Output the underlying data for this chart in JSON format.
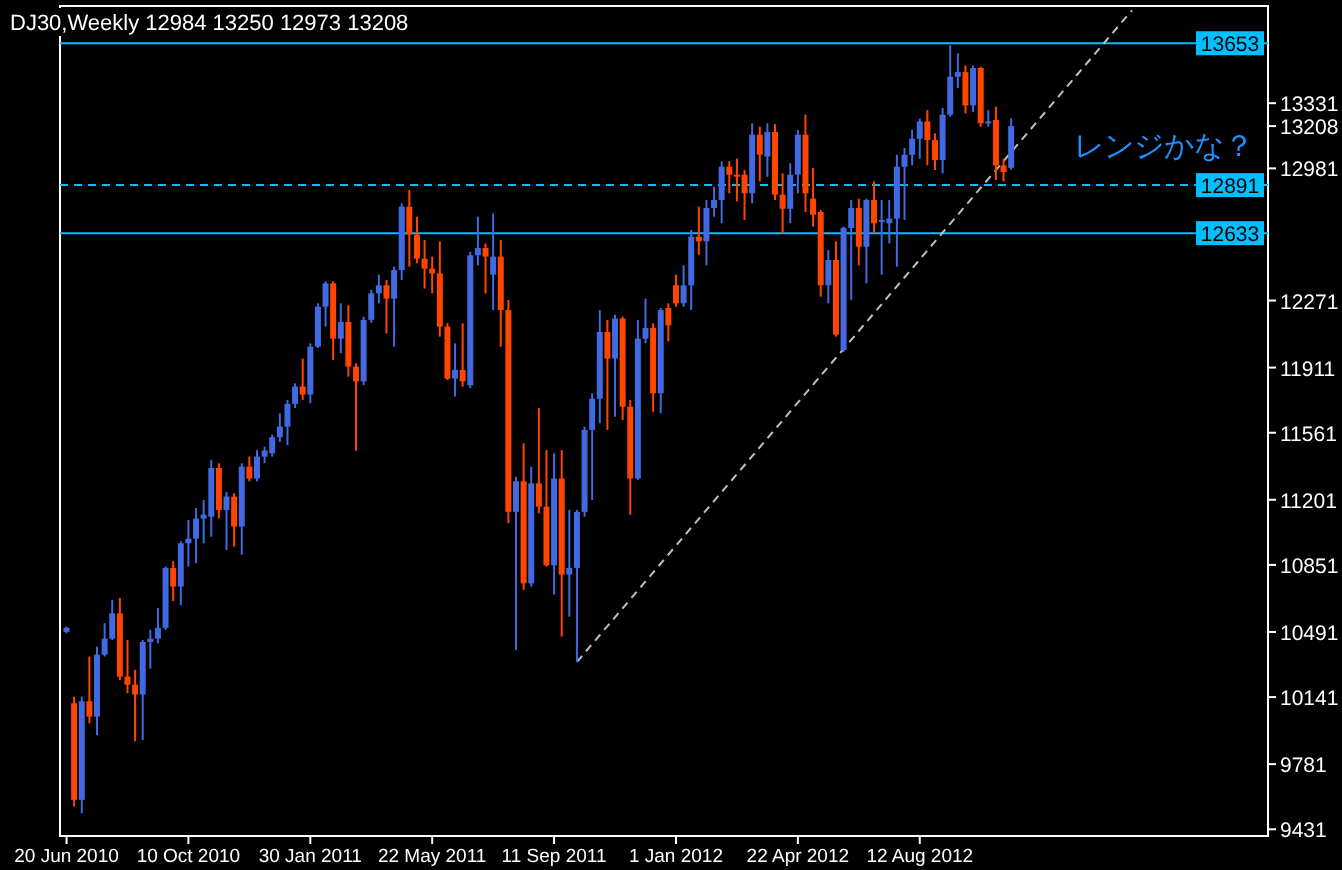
{
  "chart_data": {
    "type": "candlestick",
    "title": "DJ30,Weekly  12984 13250 12973 13208",
    "x": [
      "2010-06-20",
      "2010-06-27",
      "2010-07-04",
      "2010-07-11",
      "2010-07-18",
      "2010-07-25",
      "2010-08-01",
      "2010-08-08",
      "2010-08-15",
      "2010-08-22",
      "2010-08-29",
      "2010-09-05",
      "2010-09-12",
      "2010-09-19",
      "2010-09-26",
      "2010-10-03",
      "2010-10-10",
      "2010-10-17",
      "2010-10-24",
      "2010-10-31",
      "2010-11-07",
      "2010-11-14",
      "2010-11-21",
      "2010-11-28",
      "2010-12-05",
      "2010-12-12",
      "2010-12-19",
      "2010-12-26",
      "2011-01-02",
      "2011-01-09",
      "2011-01-16",
      "2011-01-23",
      "2011-01-30",
      "2011-02-06",
      "2011-02-13",
      "2011-02-20",
      "2011-02-27",
      "2011-03-06",
      "2011-03-13",
      "2011-03-20",
      "2011-03-27",
      "2011-04-03",
      "2011-04-10",
      "2011-04-17",
      "2011-04-24",
      "2011-05-01",
      "2011-05-08",
      "2011-05-15",
      "2011-05-22",
      "2011-05-29",
      "2011-06-05",
      "2011-06-12",
      "2011-06-19",
      "2011-06-26",
      "2011-07-03",
      "2011-07-10",
      "2011-07-17",
      "2011-07-24",
      "2011-07-31",
      "2011-08-07",
      "2011-08-14",
      "2011-08-21",
      "2011-08-28",
      "2011-09-04",
      "2011-09-11",
      "2011-09-18",
      "2011-09-25",
      "2011-10-02",
      "2011-10-09",
      "2011-10-16",
      "2011-10-23",
      "2011-10-30",
      "2011-11-06",
      "2011-11-13",
      "2011-11-20",
      "2011-11-27",
      "2011-12-04",
      "2011-12-11",
      "2011-12-18",
      "2011-12-25",
      "2012-01-01",
      "2012-01-08",
      "2012-01-15",
      "2012-01-22",
      "2012-01-29",
      "2012-02-05",
      "2012-02-12",
      "2012-02-19",
      "2012-02-26",
      "2012-03-04",
      "2012-03-11",
      "2012-03-18",
      "2012-03-25",
      "2012-04-01",
      "2012-04-08",
      "2012-04-15",
      "2012-04-22",
      "2012-04-29",
      "2012-05-06",
      "2012-05-13",
      "2012-05-20",
      "2012-05-27",
      "2012-06-03",
      "2012-06-10",
      "2012-06-17",
      "2012-06-24",
      "2012-07-01",
      "2012-07-08",
      "2012-07-15",
      "2012-07-22",
      "2012-07-29",
      "2012-08-05",
      "2012-08-12",
      "2012-08-19",
      "2012-08-26",
      "2012-09-02",
      "2012-09-09",
      "2012-09-16",
      "2012-09-23",
      "2012-09-30",
      "2012-10-07",
      "2012-10-14",
      "2012-10-21",
      "2012-10-28",
      "2012-11-04"
    ],
    "ohlc": [
      [
        10491,
        10520,
        10484,
        10513
      ],
      [
        10108,
        10144,
        9553,
        9589
      ],
      [
        9589,
        10144,
        9517,
        10119
      ],
      [
        10119,
        10359,
        10001,
        10036
      ],
      [
        10036,
        10412,
        9936,
        10369
      ],
      [
        10369,
        10538,
        10359,
        10455
      ],
      [
        10455,
        10663,
        10448,
        10591
      ],
      [
        10591,
        10674,
        10233,
        10251
      ],
      [
        10251,
        10448,
        10162,
        10208
      ],
      [
        10208,
        10287,
        9904,
        10155
      ],
      [
        10155,
        10448,
        9911,
        10437
      ],
      [
        10437,
        10502,
        10294,
        10455
      ],
      [
        10455,
        10620,
        10430,
        10513
      ],
      [
        10513,
        10842,
        10502,
        10835
      ],
      [
        10835,
        10871,
        10656,
        10735
      ],
      [
        10735,
        10978,
        10634,
        10967
      ],
      [
        10967,
        11093,
        10842,
        10992
      ],
      [
        10992,
        11157,
        10860,
        11100
      ],
      [
        11100,
        11200,
        10967,
        11121
      ],
      [
        11110,
        11415,
        11003,
        11372
      ],
      [
        11372,
        11397,
        11100,
        11146
      ],
      [
        11146,
        11243,
        10931,
        11218
      ],
      [
        11218,
        11236,
        10949,
        11057
      ],
      [
        11057,
        11397,
        10906,
        11379
      ],
      [
        11379,
        11433,
        11300,
        11315
      ],
      [
        11315,
        11468,
        11300,
        11433
      ],
      [
        11433,
        11486,
        11397,
        11465
      ],
      [
        11451,
        11551,
        11433,
        11537
      ],
      [
        11537,
        11665,
        11511,
        11594
      ],
      [
        11594,
        11737,
        11494,
        11716
      ],
      [
        11716,
        11826,
        11694,
        11809
      ],
      [
        11809,
        11959,
        11737,
        11766
      ],
      [
        11766,
        12041,
        11719,
        12023
      ],
      [
        12023,
        12256,
        12016,
        12238
      ],
      [
        12238,
        12374,
        12131,
        12363
      ],
      [
        12363,
        12374,
        11952,
        12066
      ],
      [
        12066,
        12256,
        11988,
        12156
      ],
      [
        12156,
        12245,
        11862,
        11916
      ],
      [
        11916,
        11934,
        11465,
        11837
      ],
      [
        11837,
        12184,
        11816,
        12167
      ],
      [
        12167,
        12328,
        12152,
        12310
      ],
      [
        12310,
        12410,
        12256,
        12353
      ],
      [
        12353,
        12381,
        12095,
        12281
      ],
      [
        12281,
        12453,
        12023,
        12435
      ],
      [
        12435,
        12793,
        12381,
        12775
      ],
      [
        12775,
        12865,
        12453,
        12625
      ],
      [
        12625,
        12721,
        12471,
        12496
      ],
      [
        12496,
        12596,
        12335,
        12442
      ],
      [
        12442,
        12507,
        12310,
        12417
      ],
      [
        12417,
        12589,
        12077,
        12131
      ],
      [
        12131,
        12149,
        11844,
        11852
      ],
      [
        11852,
        12041,
        11755,
        11898
      ],
      [
        11898,
        12149,
        11809,
        11837
      ],
      [
        11816,
        12532,
        11801,
        12514
      ],
      [
        12514,
        12721,
        12460,
        12553
      ],
      [
        12553,
        12578,
        12310,
        12507
      ],
      [
        12410,
        12739,
        12220,
        12507
      ],
      [
        12507,
        12596,
        12023,
        12220
      ],
      [
        12220,
        12274,
        11075,
        11136
      ],
      [
        11136,
        11325,
        10394,
        11300
      ],
      [
        11300,
        11504,
        10717,
        10752
      ],
      [
        10752,
        11379,
        10735,
        11289
      ],
      [
        11289,
        11694,
        11128,
        11164
      ],
      [
        11164,
        11468,
        10842,
        10849
      ],
      [
        10849,
        11451,
        10692,
        11315
      ],
      [
        11315,
        11468,
        10466,
        10799
      ],
      [
        10799,
        11146,
        10573,
        10835
      ],
      [
        10835,
        11146,
        10330,
        11136
      ],
      [
        11136,
        11594,
        11110,
        11576
      ],
      [
        11576,
        11773,
        11200,
        11744
      ],
      [
        11744,
        12220,
        11612,
        12102
      ],
      [
        12102,
        12167,
        11576,
        11959
      ],
      [
        11959,
        12195,
        11647,
        12174
      ],
      [
        12174,
        12184,
        11630,
        11701
      ],
      [
        11701,
        11737,
        11121,
        11315
      ],
      [
        11315,
        12167,
        11307,
        12066
      ],
      [
        12066,
        12281,
        12041,
        12124
      ],
      [
        12124,
        12149,
        11673,
        11773
      ],
      [
        11773,
        12231,
        11665,
        12220
      ],
      [
        12231,
        12256,
        12052,
        12138
      ],
      [
        12353,
        12410,
        12238,
        12256
      ],
      [
        12256,
        12460,
        12238,
        12353
      ],
      [
        12353,
        12650,
        12220,
        12614
      ],
      [
        12614,
        12775,
        12517,
        12589
      ],
      [
        12589,
        12811,
        12460,
        12768
      ],
      [
        12768,
        12883,
        12721,
        12811
      ],
      [
        12811,
        13019,
        12686,
        12990
      ],
      [
        12990,
        13019,
        12847,
        12947
      ],
      [
        12947,
        13033,
        12804,
        12940
      ],
      [
        12947,
        12972,
        12704,
        12847
      ],
      [
        12847,
        13223,
        12793,
        13162
      ],
      [
        13162,
        13205,
        12911,
        13054
      ],
      [
        13044,
        13223,
        12936,
        13176
      ],
      [
        13176,
        13219,
        12811,
        12840
      ],
      [
        12840,
        12954,
        12632,
        12764
      ],
      [
        12764,
        13008,
        12686,
        12947
      ],
      [
        12947,
        13187,
        12847,
        13162
      ],
      [
        13162,
        13269,
        12747,
        12847
      ],
      [
        12818,
        12983,
        12668,
        12732
      ],
      [
        12747,
        12757,
        12292,
        12353
      ],
      [
        12353,
        12542,
        12256,
        12489
      ],
      [
        12489,
        12589,
        12077,
        12088
      ],
      [
        12005,
        12668,
        11995,
        12661
      ],
      [
        12661,
        12811,
        12274,
        12768
      ],
      [
        12768,
        12818,
        12460,
        12560
      ],
      [
        12560,
        12818,
        12363,
        12811
      ],
      [
        12811,
        12911,
        12632,
        12686
      ],
      [
        12696,
        12811,
        12410,
        12704
      ],
      [
        12686,
        12811,
        12578,
        12711
      ],
      [
        12711,
        13054,
        12453,
        12990
      ],
      [
        12990,
        13090,
        12704,
        13054
      ],
      [
        13054,
        13187,
        12997,
        13140
      ],
      [
        13140,
        13248,
        13033,
        13233
      ],
      [
        13233,
        13294,
        12997,
        13133
      ],
      [
        13133,
        13169,
        12972,
        13026
      ],
      [
        13026,
        13305,
        12954,
        13269
      ],
      [
        13269,
        13642,
        13258,
        13473
      ],
      [
        13473,
        13599,
        13412,
        13498
      ],
      [
        13498,
        13534,
        13276,
        13319
      ],
      [
        13319,
        13534,
        13284,
        13520
      ],
      [
        13520,
        13527,
        13205,
        13223
      ],
      [
        13223,
        13294,
        13205,
        13233
      ],
      [
        13241,
        13312,
        12918,
        12997
      ],
      [
        12997,
        13033,
        12911,
        12961
      ],
      [
        12984,
        13250,
        12973,
        13208
      ]
    ],
    "colors": [
      "#4169e1",
      "#ff4500",
      "#4169e1",
      "#ff4500",
      "#4169e1",
      "#4169e1",
      "#4169e1",
      "#ff4500",
      "#ff4500",
      "#ff4500",
      "#4169e1",
      "#4169e1",
      "#4169e1",
      "#4169e1",
      "#ff4500",
      "#4169e1",
      "#4169e1",
      "#4169e1",
      "#4169e1",
      "#4169e1",
      "#ff4500",
      "#4169e1",
      "#ff4500",
      "#4169e1",
      "#ff4500",
      "#4169e1",
      "#4169e1",
      "#4169e1",
      "#4169e1",
      "#4169e1",
      "#4169e1",
      "#ff4500",
      "#4169e1",
      "#4169e1",
      "#4169e1",
      "#ff4500",
      "#4169e1",
      "#ff4500",
      "#ff4500",
      "#4169e1",
      "#4169e1",
      "#4169e1",
      "#ff4500",
      "#4169e1",
      "#4169e1",
      "#ff4500",
      "#ff4500",
      "#ff4500",
      "#ff4500",
      "#ff4500",
      "#ff4500",
      "#4169e1",
      "#ff4500",
      "#4169e1",
      "#4169e1",
      "#ff4500",
      "#4169e1",
      "#ff4500",
      "#ff4500",
      "#4169e1",
      "#ff4500",
      "#4169e1",
      "#ff4500",
      "#ff4500",
      "#4169e1",
      "#ff4500",
      "#4169e1",
      "#4169e1",
      "#4169e1",
      "#4169e1",
      "#4169e1",
      "#ff4500",
      "#4169e1",
      "#ff4500",
      "#ff4500",
      "#4169e1",
      "#4169e1",
      "#ff4500",
      "#4169e1",
      "#ff4500",
      "#ff4500",
      "#4169e1",
      "#4169e1",
      "#ff4500",
      "#4169e1",
      "#4169e1",
      "#4169e1",
      "#ff4500",
      "#ff4500",
      "#ff4500",
      "#4169e1",
      "#ff4500",
      "#4169e1",
      "#ff4500",
      "#ff4500",
      "#4169e1",
      "#4169e1",
      "#ff4500",
      "#ff4500",
      "#ff4500",
      "#4169e1",
      "#ff4500",
      "#4169e1",
      "#4169e1",
      "#ff4500",
      "#4169e1",
      "#ff4500",
      "#4169e1",
      "#4169e1",
      "#4169e1",
      "#4169e1",
      "#4169e1",
      "#4169e1",
      "#ff4500",
      "#ff4500",
      "#4169e1",
      "#4169e1",
      "#4169e1",
      "#ff4500",
      "#4169e1",
      "#ff4500",
      "#4169e1",
      "#ff4500",
      "#ff4500",
      "#4169e1"
    ],
    "series": [
      {
        "type": "line",
        "x": [
          "2011-10-02",
          "2013-02-23"
        ],
        "values": [
          10330,
          13830
        ],
        "color": "#c0c0c0",
        "line_style": "dashed"
      }
    ],
    "xlim": [
      "2010-06-14",
      "2013-06-28"
    ],
    "ylim": [
      9395,
      13853
    ],
    "xticks": [
      {
        "value": "2010-06-20",
        "label": "20 Jun 2010"
      },
      {
        "value": "2010-10-10",
        "label": "10 Oct 2010"
      },
      {
        "value": "2011-01-30",
        "label": "30 Jan 2011"
      },
      {
        "value": "2011-05-22",
        "label": "22 May 2011"
      },
      {
        "value": "2011-09-11",
        "label": "11 Sep 2011"
      },
      {
        "value": "2012-01-01",
        "label": "1 Jan 2012"
      },
      {
        "value": "2012-04-22",
        "label": "22 Apr 2012"
      },
      {
        "value": "2012-08-12",
        "label": "12 Aug 2012"
      }
    ],
    "yticks": [
      13331,
      13208,
      12981,
      12271,
      11911,
      11561,
      11201,
      10851,
      10491,
      10141,
      9781,
      9431
    ],
    "ref_lines": [
      {
        "axis": "y",
        "value": 13653,
        "label": "13653",
        "color": "#00bfff",
        "line_style": "solid"
      },
      {
        "axis": "y",
        "value": 12891,
        "label": "12891",
        "color": "#00bfff",
        "line_style": "dashed"
      },
      {
        "axis": "y",
        "value": 12633,
        "label": "12633",
        "color": "#00bfff",
        "line_style": "solid"
      }
    ],
    "annotations": [
      "レンジかな？"
    ]
  }
}
